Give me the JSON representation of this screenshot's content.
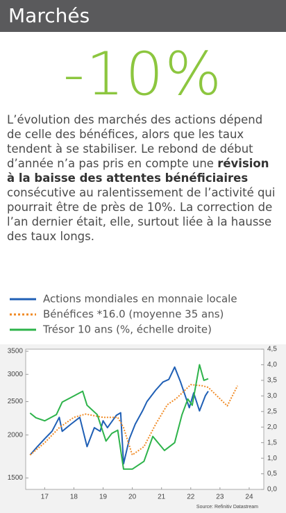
{
  "header": {
    "title": "Marchés"
  },
  "headline": "-10%",
  "paragraph": [
    "L’évolution des marchés des actions dépend de celle des bénéfices, alors que les taux tendent à se stabiliser. Le rebond de début d’année n’a pas pris en compte une ",
    "révision à la baisse des attentes bénéficiaires",
    " consécutive au ralentissement de l’activité qui pourrait être de près de 10%. La correction de l’an dernier était, elle, surtout liée à la hausse des taux longs."
  ],
  "chart_data": {
    "type": "line",
    "log_y": true,
    "source": "Source: Refinitiv Datastream",
    "xlim": [
      2016.85,
      2025.0
    ],
    "xticks": [
      {
        "value": 2017.5,
        "label": "17"
      },
      {
        "value": 2018.5,
        "label": "18"
      },
      {
        "value": 2019.5,
        "label": "19"
      },
      {
        "value": 2020.5,
        "label": "20"
      },
      {
        "value": 2021.5,
        "label": "21"
      },
      {
        "value": 2022.5,
        "label": "22"
      },
      {
        "value": 2023.5,
        "label": "23"
      },
      {
        "value": 2024.5,
        "label": "24"
      }
    ],
    "ylim": [
      1390,
      3550
    ],
    "yticks": [
      1500,
      2000,
      2500,
      3000,
      3500
    ],
    "y2lim": [
      0,
      4.5
    ],
    "y2ticks": [
      {
        "value": 0,
        "label": "0,0"
      },
      {
        "value": 0.5,
        "label": "0,5"
      },
      {
        "value": 1,
        "label": "1,0"
      },
      {
        "value": 1.5,
        "label": "1,5"
      },
      {
        "value": 2,
        "label": "2,0"
      },
      {
        "value": 2.5,
        "label": "2,5"
      },
      {
        "value": 3,
        "label": "3,0"
      },
      {
        "value": 3.5,
        "label": "3,5"
      },
      {
        "value": 4,
        "label": "4,0"
      },
      {
        "value": 4.5,
        "label": "4,5"
      }
    ],
    "series": [
      {
        "name": "Actions mondiales en monnaie locale",
        "color": "#1f5fb5",
        "style": "solid",
        "x": [
          2017.0,
          2017.25,
          2017.5,
          2017.75,
          2018.0,
          2018.1,
          2018.4,
          2018.7,
          2018.95,
          2019.2,
          2019.4,
          2019.5,
          2019.65,
          2019.95,
          2020.1,
          2020.2,
          2020.4,
          2020.6,
          2020.85,
          2021.0,
          2021.3,
          2021.55,
          2021.75,
          2021.95,
          2022.15,
          2022.45,
          2022.6,
          2022.8,
          2023.0,
          2023.1
        ],
        "values": [
          1750,
          1850,
          1950,
          2050,
          2250,
          2050,
          2150,
          2250,
          1850,
          2100,
          2050,
          2200,
          2100,
          2280,
          2320,
          1650,
          1950,
          2150,
          2350,
          2500,
          2700,
          2850,
          2900,
          3150,
          2850,
          2400,
          2650,
          2350,
          2600,
          2680
        ]
      },
      {
        "name": "Bénéfices *16.0 (moyenne 35 ans)",
        "color": "#f08a24",
        "style": "dotted",
        "x": [
          2017.0,
          2017.5,
          2018.0,
          2018.5,
          2018.9,
          2019.5,
          2020.0,
          2020.2,
          2020.5,
          2020.9,
          2021.3,
          2021.7,
          2022.0,
          2022.5,
          2022.9,
          2023.1,
          2023.75,
          2024.1
        ],
        "values": [
          1750,
          1900,
          2100,
          2250,
          2300,
          2250,
          2250,
          2100,
          1750,
          1850,
          2150,
          2450,
          2550,
          2800,
          2780,
          2750,
          2430,
          2780
        ]
      },
      {
        "name": "Trésor 10 ans (%, échelle droite)",
        "color": "#2db34a",
        "style": "solid",
        "axis": "y2",
        "x": [
          2017.0,
          2017.2,
          2017.5,
          2017.9,
          2018.1,
          2018.4,
          2018.8,
          2018.95,
          2019.3,
          2019.6,
          2019.8,
          2020.0,
          2020.2,
          2020.5,
          2020.9,
          2021.2,
          2021.6,
          2021.95,
          2022.2,
          2022.4,
          2022.55,
          2022.8,
          2022.95,
          2023.1
        ],
        "values": [
          2.45,
          2.3,
          2.2,
          2.4,
          2.8,
          2.95,
          3.15,
          2.7,
          2.4,
          1.55,
          1.8,
          1.9,
          0.65,
          0.65,
          0.9,
          1.7,
          1.25,
          1.5,
          2.4,
          2.9,
          2.7,
          4.0,
          3.5,
          3.55
        ]
      }
    ]
  }
}
